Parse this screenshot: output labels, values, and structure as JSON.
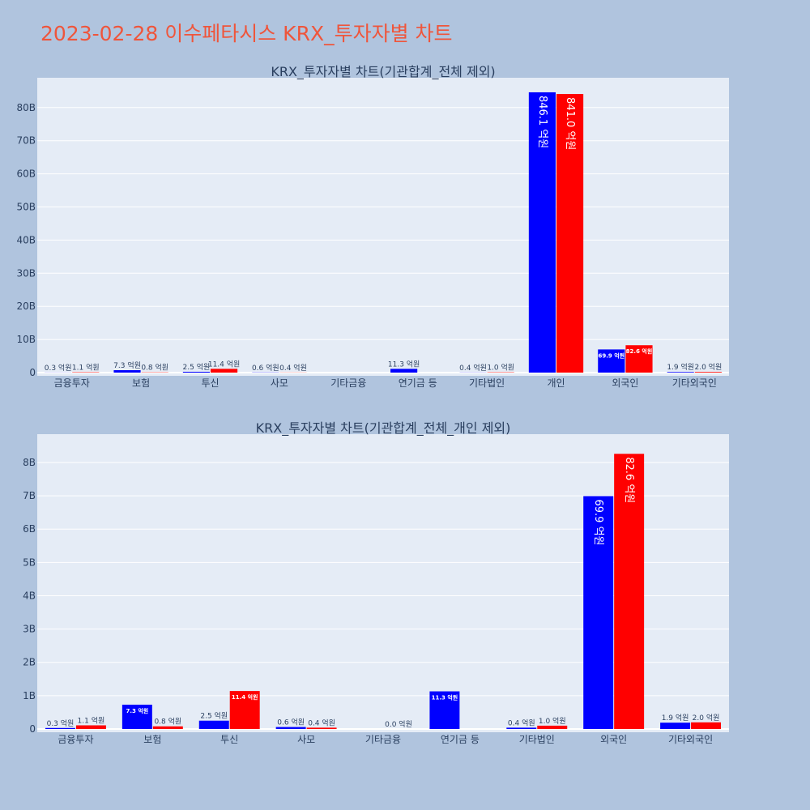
{
  "page": {
    "title": "2023-02-28 이수페타시스 KRX_투자자별 차트"
  },
  "colors": {
    "buy": "#0000ff",
    "sell": "#ff0000",
    "plot_bg": "#e5ecf6",
    "page_bg": "#b0c4de",
    "title": "#ef553b"
  },
  "chart_data": [
    {
      "type": "bar",
      "title": "KRX_투자자별 차트(기관합계_전체 제외)",
      "categories": [
        "금융투자",
        "보험",
        "투신",
        "사모",
        "기타금융",
        "연기금 등",
        "기타법인",
        "개인",
        "외국인",
        "기타외국인"
      ],
      "series": [
        {
          "values": [
            0.03,
            0.73,
            0.25,
            0.06,
            0,
            1.13,
            0.04,
            84.61,
            6.99,
            0.19
          ],
          "labels": [
            "0.3 억원",
            "7.3 억원",
            "2.5 억원",
            "0.6 억원",
            "",
            "11.3 억원",
            "0.4 억원",
            "846.1 억원",
            "69.9 억원",
            "1.9 억원"
          ]
        },
        {
          "values": [
            0.11,
            0.08,
            1.14,
            0.04,
            0,
            0,
            0.1,
            84.1,
            8.26,
            0.2
          ],
          "labels": [
            "1.1 억원",
            "0.8 억원",
            "11.4 억원",
            "0.4 억원",
            "",
            "",
            "1.0 억원",
            "841.0 억원",
            "82.6 억원",
            "2.0 억원"
          ]
        }
      ],
      "ytick_labels": [
        "0",
        "10B",
        "20B",
        "30B",
        "40B",
        "50B",
        "60B",
        "70B",
        "80B"
      ],
      "ylim": [
        0,
        89
      ],
      "grid": true
    },
    {
      "type": "bar",
      "title": "KRX_투자자별 차트(기관합계_전체_개인 제외)",
      "categories": [
        "금융투자",
        "보험",
        "투신",
        "사모",
        "기타금융",
        "연기금 등",
        "기타법인",
        "외국인",
        "기타외국인"
      ],
      "series": [
        {
          "values": [
            0.03,
            0.73,
            0.25,
            0.06,
            0,
            1.13,
            0.04,
            6.99,
            0.19
          ],
          "labels": [
            "0.3 억원",
            "7.3 억원",
            "2.5 억원",
            "0.6 억원",
            "",
            "11.3 억원",
            "0.4 억원",
            "69.9 억원",
            "1.9 억원"
          ]
        },
        {
          "values": [
            0.11,
            0.08,
            1.14,
            0.04,
            0,
            0,
            0.1,
            8.26,
            0.2
          ],
          "labels": [
            "1.1 억원",
            "0.8 억원",
            "11.4 억원",
            "0.4 억원",
            "0.0 억원",
            "",
            "1.0 억원",
            "82.6 억원",
            "2.0 억원"
          ]
        }
      ],
      "ytick_labels": [
        "0",
        "1B",
        "2B",
        "3B",
        "4B",
        "5B",
        "6B",
        "7B",
        "8B"
      ],
      "ylim": [
        0,
        8.85
      ],
      "grid": true
    }
  ]
}
